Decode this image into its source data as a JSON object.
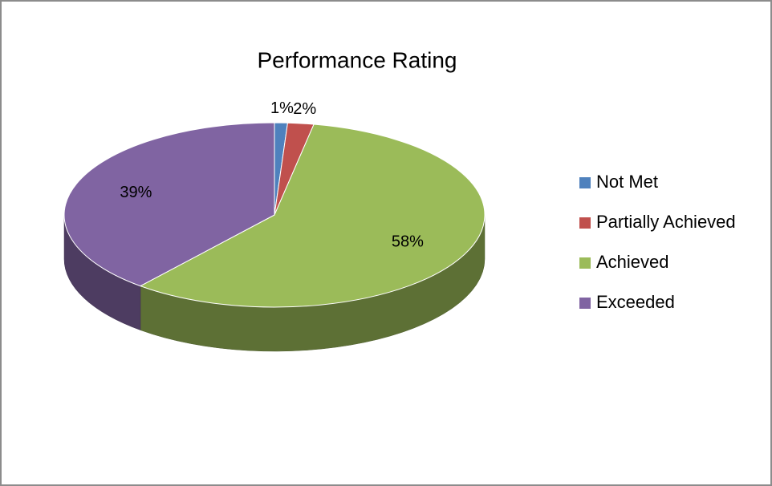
{
  "chart_data": {
    "type": "pie",
    "title": "Performance Rating",
    "categories": [
      "Not Met",
      "Partially Achieved",
      "Achieved",
      "Exceeded"
    ],
    "values": [
      1,
      2,
      58,
      39
    ],
    "value_labels": [
      "1%",
      "2%",
      "58%",
      "39%"
    ],
    "colors": [
      "#4f81bd",
      "#c0504d",
      "#9bbb59",
      "#8064a2"
    ],
    "legend": "right"
  }
}
